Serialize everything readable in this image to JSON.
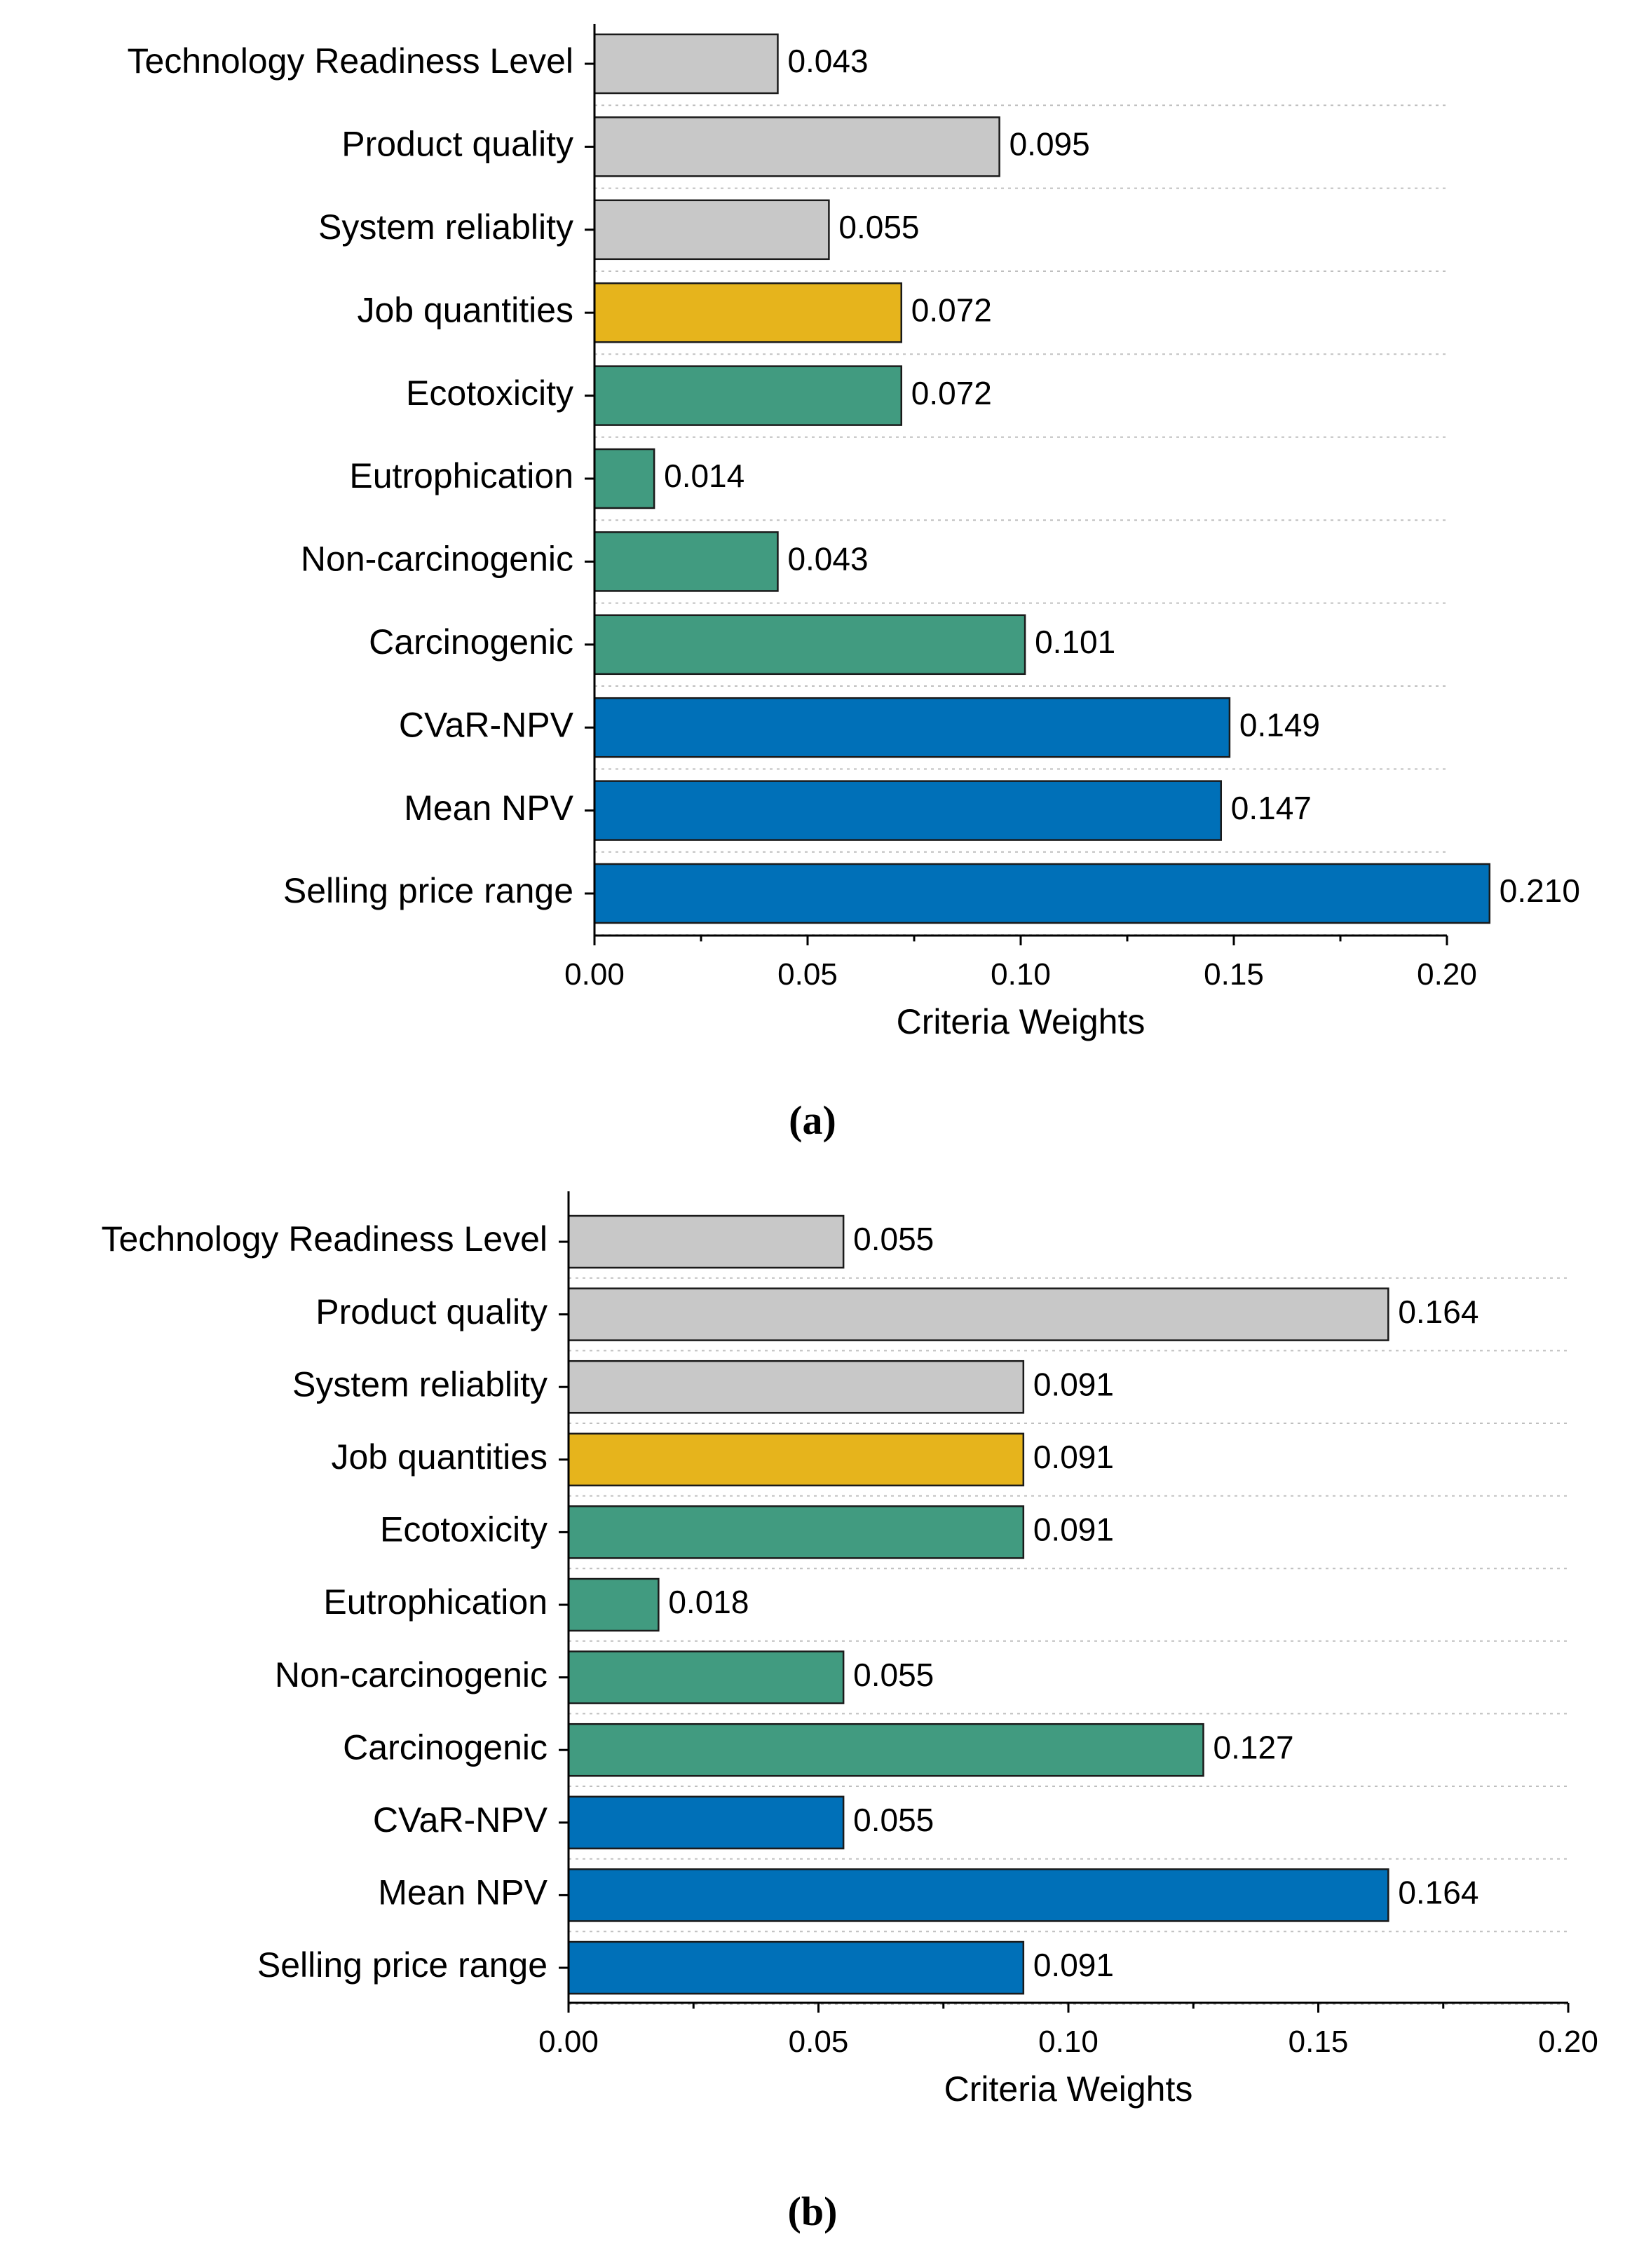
{
  "colors": {
    "technical": "#c8c8c8",
    "social": "#e6b41c",
    "environmental": "#419b80",
    "economic": "#0070b8"
  },
  "chart_data": [
    {
      "type": "bar",
      "orientation": "horizontal",
      "panel_label": "(a)",
      "xlabel": "Criteria Weights",
      "xlim": [
        0,
        0.2
      ],
      "xticks": [
        "0.00",
        "0.05",
        "0.10",
        "0.15",
        "0.20"
      ],
      "grid": true,
      "categories": [
        "Technology Readiness Level",
        "Product quality",
        "System reliablity",
        "Job quantities",
        "Ecotoxicity",
        "Eutrophication",
        "Non-carcinogenic",
        "Carcinogenic",
        "CVaR-NPV",
        "Mean NPV",
        "Selling price range"
      ],
      "values": [
        0.043,
        0.095,
        0.055,
        0.072,
        0.072,
        0.014,
        0.043,
        0.101,
        0.149,
        0.147,
        0.21
      ],
      "value_labels": [
        "0.043",
        "0.095",
        "0.055",
        "0.072",
        "0.072",
        "0.014",
        "0.043",
        "0.101",
        "0.149",
        "0.147",
        "0.210"
      ],
      "groups": [
        "technical",
        "technical",
        "technical",
        "social",
        "environmental",
        "environmental",
        "environmental",
        "environmental",
        "economic",
        "economic",
        "economic"
      ]
    },
    {
      "type": "bar",
      "orientation": "horizontal",
      "panel_label": "(b)",
      "xlabel": "Criteria Weights",
      "xlim": [
        0,
        0.2
      ],
      "xticks": [
        "0.00",
        "0.05",
        "0.10",
        "0.15",
        "0.20"
      ],
      "grid": true,
      "categories": [
        "Technology Readiness Level",
        "Product quality",
        "System reliablity",
        "Job quantities",
        "Ecotoxicity",
        "Eutrophication",
        "Non-carcinogenic",
        "Carcinogenic",
        "CVaR-NPV",
        "Mean NPV",
        "Selling price range"
      ],
      "values": [
        0.055,
        0.164,
        0.091,
        0.091,
        0.091,
        0.018,
        0.055,
        0.127,
        0.055,
        0.164,
        0.091
      ],
      "value_labels": [
        "0.055",
        "0.164",
        "0.091",
        "0.091",
        "0.091",
        "0.018",
        "0.055",
        "0.127",
        "0.055",
        "0.164",
        "0.091"
      ],
      "groups": [
        "technical",
        "technical",
        "technical",
        "social",
        "environmental",
        "environmental",
        "environmental",
        "environmental",
        "economic",
        "economic",
        "economic"
      ]
    }
  ]
}
